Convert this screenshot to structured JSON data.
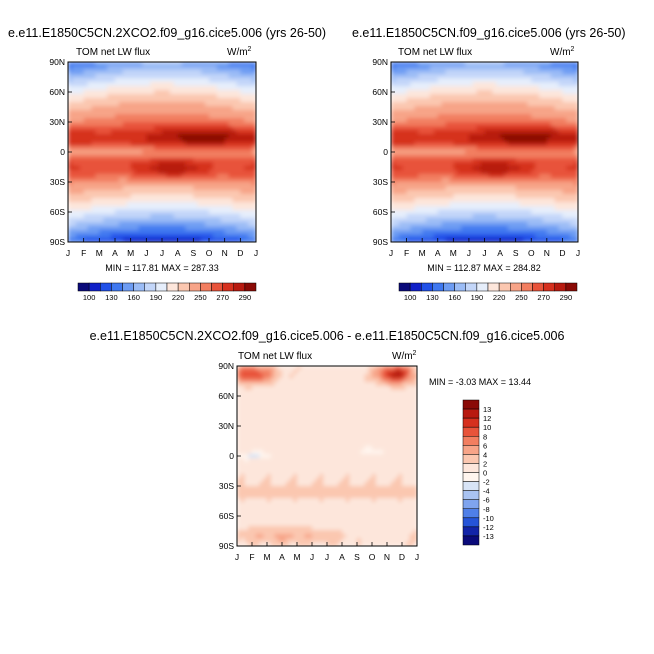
{
  "chart_data": [
    {
      "type": "heatmap",
      "title": "e.e11.E1850C5CN.2XCO2.f09_g16.cice5.006 (yrs 26-50)",
      "subtitle_left": "TOM net LW flux",
      "units_base": "W/m",
      "units_exp": "2",
      "x_ticks": [
        "J",
        "F",
        "M",
        "A",
        "M",
        "J",
        "J",
        "A",
        "S",
        "O",
        "N",
        "D",
        "J"
      ],
      "y_ticks": [
        "90N",
        "60N",
        "30N",
        "0",
        "30S",
        "60S",
        "90S"
      ],
      "stats": "MIN = 117.81  MAX = 287.33",
      "colorbar_labels": [
        "100",
        "130",
        "160",
        "190",
        "220",
        "250",
        "270",
        "290"
      ]
    },
    {
      "type": "heatmap",
      "title": "e.e11.E1850C5CN.f09_g16.cice5.006 (yrs 26-50)",
      "subtitle_left": "TOM net LW flux",
      "units_base": "W/m",
      "units_exp": "2",
      "x_ticks": [
        "J",
        "F",
        "M",
        "A",
        "M",
        "J",
        "J",
        "A",
        "S",
        "O",
        "N",
        "D",
        "J"
      ],
      "y_ticks": [
        "90N",
        "60N",
        "30N",
        "0",
        "30S",
        "60S",
        "90S"
      ],
      "stats": "MIN = 112.87  MAX = 284.82",
      "colorbar_labels": [
        "100",
        "130",
        "160",
        "190",
        "220",
        "250",
        "270",
        "290"
      ]
    },
    {
      "type": "heatmap",
      "title": "e.e11.E1850C5CN.2XCO2.f09_g16.cice5.006 - e.e11.E1850C5CN.f09_g16.cice5.006",
      "subtitle_left": "TOM net LW flux",
      "units_base": "W/m",
      "units_exp": "2",
      "x_ticks": [
        "J",
        "F",
        "M",
        "A",
        "M",
        "J",
        "J",
        "A",
        "S",
        "O",
        "N",
        "D",
        "J"
      ],
      "y_ticks": [
        "90N",
        "60N",
        "30N",
        "0",
        "30S",
        "60S",
        "90S"
      ],
      "stats": "MIN =  -3.03  MAX =  13.44",
      "colorbar_labels": [
        "13",
        "12",
        "10",
        "8",
        "6",
        "4",
        "2",
        "0",
        "-2",
        "-4",
        "-6",
        "-8",
        "-10",
        "-12",
        "-13"
      ]
    }
  ],
  "palette": {
    "abs_colors": [
      "#0a0a7a",
      "#1020c8",
      "#2050e8",
      "#3f78f0",
      "#6d9cf3",
      "#9bbcf6",
      "#c3d6f9",
      "#e6eefb",
      "#fde6db",
      "#fbc7b0",
      "#f7a488",
      "#f27e60",
      "#e8533a",
      "#d6301e",
      "#b81a10",
      "#8a0a06"
    ],
    "diff_colors": [
      "#8a0a06",
      "#b81a10",
      "#d6301e",
      "#e8533a",
      "#f27e60",
      "#f7a488",
      "#fbc7b0",
      "#fde6db",
      "#fff5ee",
      "#d8e4f6",
      "#a9c3f2",
      "#7fa4ee",
      "#4f7fe8",
      "#2554d8",
      "#1224a8",
      "#0a0a7a"
    ]
  }
}
